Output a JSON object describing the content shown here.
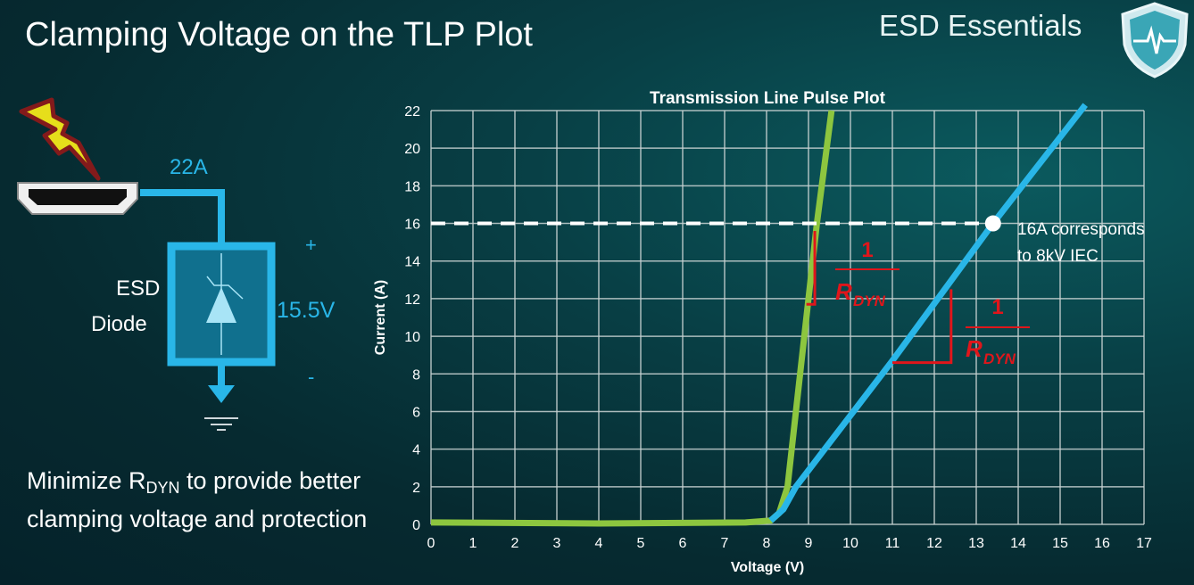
{
  "slide": {
    "title": "Clamping Voltage on the TLP Plot",
    "brand": "ESD Essentials",
    "description_pre": "Minimize R",
    "description_sub": "DYN",
    "description_post": " to provide better clamping voltage and protection"
  },
  "circuit": {
    "current_label": "22A",
    "device_line1": "ESD",
    "device_line2": "Diode",
    "voltage_label": "15.5V",
    "plus": "+",
    "minus": "-",
    "icons": [
      "lightning-bolt-icon",
      "hdmi-port-icon",
      "tvs-diode-icon",
      "ground-icon"
    ],
    "wire_color": "#29b6e8"
  },
  "chart_data": {
    "type": "line",
    "title": "Transmission Line Pulse Plot",
    "xlabel": "Voltage (V)",
    "ylabel": "Current (A)",
    "xlim": [
      0,
      17
    ],
    "ylim": [
      0,
      22
    ],
    "xticks": [
      0,
      1,
      2,
      3,
      4,
      5,
      6,
      7,
      8,
      9,
      10,
      11,
      12,
      13,
      14,
      15,
      16,
      17
    ],
    "yticks": [
      0,
      2,
      4,
      6,
      8,
      10,
      12,
      14,
      16,
      18,
      20,
      22
    ],
    "grid": true,
    "series": [
      {
        "color": "#8dc63f",
        "x": [
          0,
          4,
          7.5,
          8.1,
          8.3,
          8.5,
          9.2,
          9.55
        ],
        "y": [
          0.1,
          0.05,
          0.1,
          0.2,
          0.6,
          2,
          16,
          22
        ]
      },
      {
        "color": "#29b6e8",
        "x": [
          8.1,
          8.4,
          8.7,
          11,
          13.4,
          15.6
        ],
        "y": [
          0.2,
          0.8,
          2,
          8.7,
          16,
          22.3
        ]
      }
    ],
    "reference_line": {
      "y": 16,
      "style": "dashed",
      "color": "#ffffff"
    },
    "marker": {
      "x": 13.4,
      "y": 16
    },
    "annotation_line1": "16A corresponds",
    "annotation_line2": "to 8kV IEC",
    "slope_label_num": "1",
    "slope_label_den": "R",
    "slope_label_sub": "DYN",
    "slope_color": "#e0161b"
  }
}
